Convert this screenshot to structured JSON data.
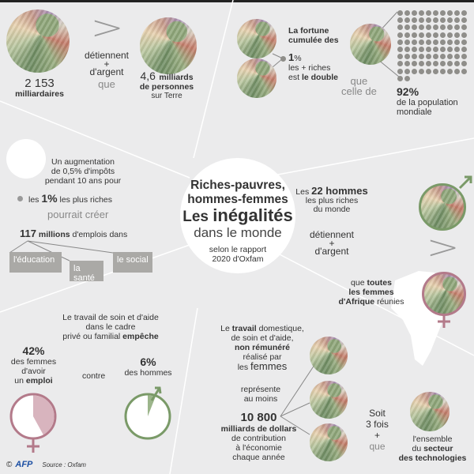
{
  "colors": {
    "background": "#ebebec",
    "male": "#7a9a68",
    "female": "#b37a8a",
    "female_fill": "#d8b4be",
    "dots": "#8f8e8a"
  },
  "top_left": {
    "verb": "détiennent",
    "plus": "+",
    "money": "d'argent",
    "que": "que",
    "count": "2 153",
    "count_label": "milliardaires",
    "population_num": "4,6",
    "population_unit": "milliards",
    "population_line2": "de personnes",
    "population_line3": "sur Terre",
    "comparator": ">"
  },
  "top_right": {
    "line1": "La fortune",
    "line2": "cumulée des",
    "pct_num": "1",
    "pct_sign": "%",
    "line4": "les + riches",
    "line5a": "est ",
    "line5b": "le double",
    "que": "que",
    "celle": "celle de",
    "pop_pct": "92%",
    "pop_line1": "de la population",
    "pop_line2": "mondiale",
    "dots_filled": 92,
    "dots_total": 100
  },
  "title": {
    "line1": "Riches-pauvres,",
    "line2": "hommes-femmes",
    "line3a": "Les ",
    "line3b": "inégalités",
    "line4": "dans le monde",
    "source1": "selon le rapport",
    "source2": "2020 d'Oxfam"
  },
  "tax": {
    "line1": "Un augmentation",
    "line2": "de 0,5% d'impôts",
    "line3": "pendant 10 ans pour",
    "line4a": "les ",
    "line4b": "1%",
    "line4c": " les plus riches",
    "line5": "pourrait créer",
    "line6a": "117",
    "line6b": " millions",
    "line6c": " d'emplois dans",
    "sectors": [
      "l'éducation",
      "la santé",
      "le social"
    ]
  },
  "men_women": {
    "l1a": "Les ",
    "l1b": "22 hommes",
    "l2": "les plus riches",
    "l3": "du monde",
    "verb": "détiennent",
    "plus": "+",
    "money": "d'argent",
    "comparator": ">",
    "w1a": "que ",
    "w1b": "toutes",
    "w2": "les femmes",
    "w3a": "d'Afrique",
    "w3b": " réunies"
  },
  "care": {
    "l1": "Le travail de soin et d'aide",
    "l2": "dans le cadre",
    "l3a": "privé ou familial ",
    "l3b": "empêche",
    "women_pct": "42%",
    "women_value": 42,
    "w1": "des femmes",
    "w2": "d'avoir",
    "w3a": "un ",
    "w3b": "emploi",
    "contre": "contre",
    "men_pct": "6%",
    "men_value": 6,
    "m1": "des hommes"
  },
  "domestic": {
    "l1a": "Le ",
    "l1b": "travail",
    "l1c": " domestique,",
    "l2": "de soin et d'aide,",
    "l3": "non rémunéré",
    "l4": "réalisé par",
    "l5a": "les ",
    "l5b": "femmes",
    "r1": "représente",
    "r2": "au moins",
    "amount": "10 800",
    "unit": "milliards de dollars",
    "d1": "de contribution",
    "d2": "à l'économie",
    "d3": "chaque année",
    "s1": "Soit",
    "s2": "3 fois",
    "s3": "+",
    "s4": "que",
    "t1": "l'ensemble",
    "t2a": "du ",
    "t2b": "secteur",
    "t3": "des technologies"
  },
  "footer": {
    "copyright": "©",
    "brand": "AFP",
    "source": "Source : Oxfam"
  }
}
